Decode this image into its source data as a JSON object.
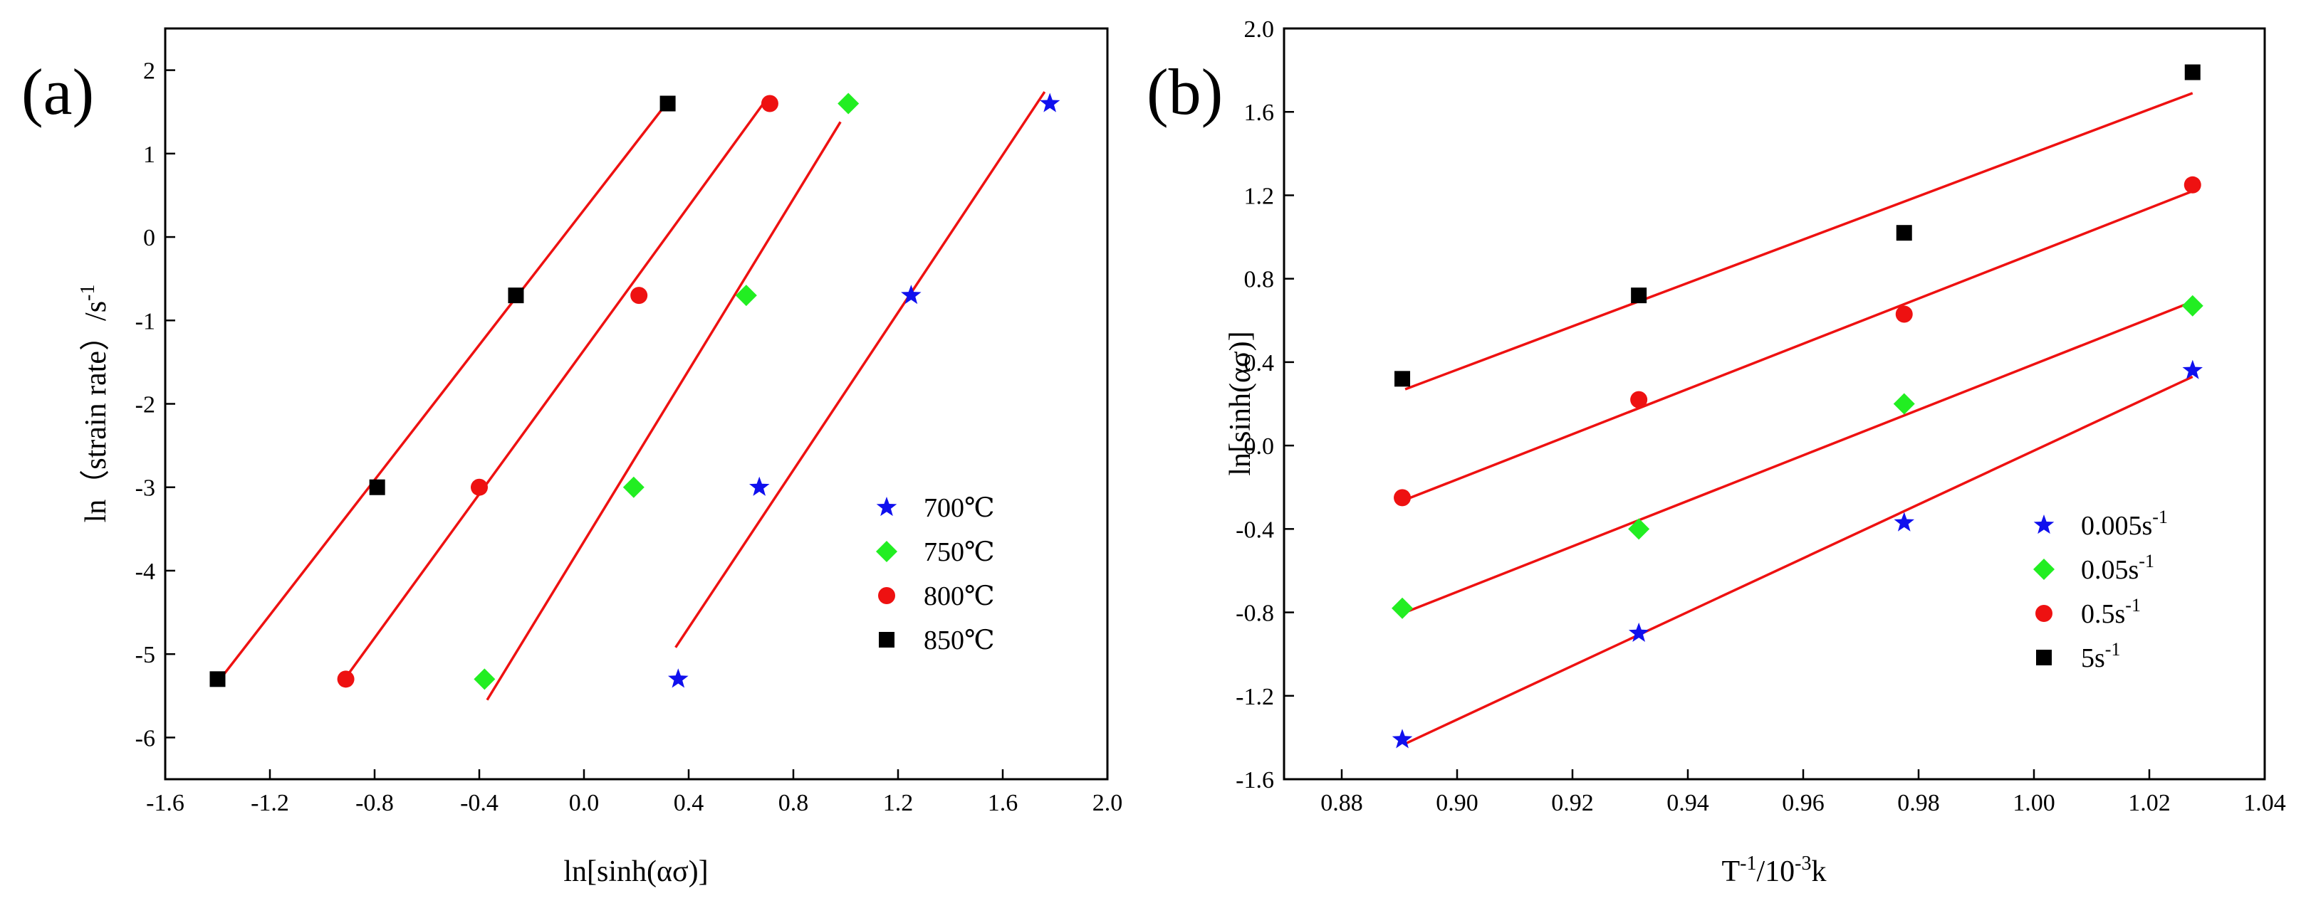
{
  "chart_data": [
    {
      "type": "scatter",
      "panel_label": "(a)",
      "xlabel": "ln[sinh(ασ)]",
      "ylabel": "ln（strain rate）/s",
      "ylabel_sup": "-1",
      "xlim": [
        -1.6,
        2.0
      ],
      "ylim": [
        -6.5,
        2.5
      ],
      "x_ticks": [
        "-1.6",
        "-1.2",
        "-0.8",
        "-0.4",
        "0.0",
        "0.4",
        "0.8",
        "1.2",
        "1.6",
        "2.0"
      ],
      "y_ticks": [
        "-6",
        "-5",
        "-4",
        "-3",
        "-2",
        "-1",
        "0",
        "1",
        "2"
      ],
      "legend_position": "right",
      "series": [
        {
          "name": "700℃",
          "marker": "star",
          "color": "#1010ee",
          "x": [
            0.36,
            0.67,
            1.25,
            1.78
          ],
          "y": [
            -5.3,
            -3.0,
            -0.7,
            1.6
          ],
          "fit": [
            [
              0.35,
              -4.92
            ],
            [
              1.76,
              1.74
            ]
          ]
        },
        {
          "name": "750℃",
          "marker": "diamond",
          "color": "#22ee22",
          "x": [
            -0.38,
            0.19,
            0.62,
            1.01
          ],
          "y": [
            -5.3,
            -3.0,
            -0.7,
            1.6
          ],
          "fit": [
            [
              -0.37,
              -5.55
            ],
            [
              0.98,
              1.38
            ]
          ]
        },
        {
          "name": "800℃",
          "marker": "circle",
          "color": "#ee1111",
          "x": [
            -0.91,
            -0.4,
            0.21,
            0.71
          ],
          "y": [
            -5.3,
            -3.0,
            -0.7,
            1.6
          ],
          "fit": [
            [
              -0.91,
              -5.28
            ],
            [
              0.69,
              1.62
            ]
          ]
        },
        {
          "name": "850℃",
          "marker": "square",
          "color": "#000000",
          "x": [
            -1.4,
            -0.79,
            -0.26,
            0.32
          ],
          "y": [
            -5.3,
            -3.0,
            -0.7,
            1.6
          ],
          "fit": [
            [
              -1.39,
              -5.3
            ],
            [
              0.32,
              1.62
            ]
          ]
        }
      ]
    },
    {
      "type": "scatter",
      "panel_label": "(b)",
      "xlabel": "T",
      "xlabel_sup1": "-1",
      "xlabel_mid": "/10",
      "xlabel_sup2": "-3",
      "xlabel_end": "k",
      "ylabel": "ln[sinh(ασ)]",
      "xlim": [
        0.87,
        1.04
      ],
      "ylim": [
        -1.6,
        2.0
      ],
      "x_ticks": [
        "0.88",
        "0.90",
        "0.92",
        "0.94",
        "0.96",
        "0.98",
        "1.00",
        "1.02",
        "1.04"
      ],
      "y_ticks": [
        "-1.6",
        "-1.2",
        "-0.8",
        "-0.4",
        "0.0",
        "0.4",
        "0.8",
        "1.2",
        "1.6",
        "2.0"
      ],
      "legend_position": "right",
      "series": [
        {
          "name": "0.005s",
          "name_sup": "-1",
          "marker": "star",
          "color": "#1010ee",
          "x": [
            0.8905,
            0.9315,
            0.9775,
            1.0275
          ],
          "y": [
            -1.41,
            -0.9,
            -0.37,
            0.36
          ],
          "fit": [
            [
              0.891,
              -1.43
            ],
            [
              1.0275,
              0.33
            ]
          ]
        },
        {
          "name": "0.05s",
          "name_sup": "-1",
          "marker": "diamond",
          "color": "#22ee22",
          "x": [
            0.8905,
            0.9315,
            0.9775,
            1.0275
          ],
          "y": [
            -0.78,
            -0.4,
            0.2,
            0.67
          ],
          "fit": [
            [
              0.891,
              -0.8
            ],
            [
              1.0275,
              0.69
            ]
          ]
        },
        {
          "name": "0.5s",
          "name_sup": "-1",
          "marker": "circle",
          "color": "#ee1111",
          "x": [
            0.8905,
            0.9315,
            0.9775,
            1.0275
          ],
          "y": [
            -0.25,
            0.22,
            0.63,
            1.25
          ],
          "fit": [
            [
              0.891,
              -0.26
            ],
            [
              1.0275,
              1.22
            ]
          ]
        },
        {
          "name": "5s",
          "name_sup": "-1",
          "marker": "square",
          "color": "#000000",
          "x": [
            0.8905,
            0.9315,
            0.9775,
            1.0275
          ],
          "y": [
            0.32,
            0.72,
            1.02,
            1.79
          ],
          "fit": [
            [
              0.891,
              0.27
            ],
            [
              1.0275,
              1.69
            ]
          ]
        }
      ]
    }
  ]
}
